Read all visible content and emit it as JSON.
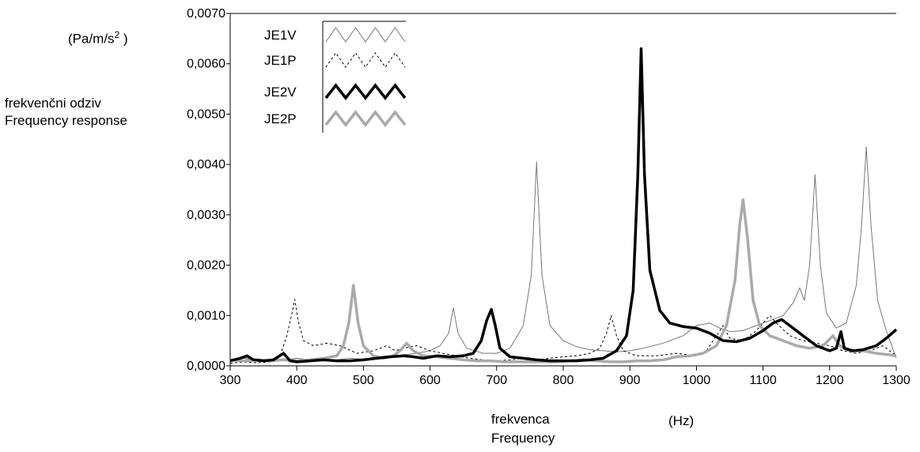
{
  "chart_data": {
    "type": "line",
    "unit_label": "(Pa/m/s",
    "unit_sup": "2",
    "unit_close": " )",
    "ylabel": [
      "frekvenčni odziv",
      "Frequency response"
    ],
    "xlabel": [
      "frekvenca",
      "Frequency"
    ],
    "xunit": "(Hz)",
    "xlim": [
      300,
      1300
    ],
    "ylim": [
      0,
      0.007
    ],
    "x_ticks": [
      300,
      400,
      500,
      600,
      700,
      800,
      900,
      1000,
      1100,
      1200,
      1300
    ],
    "x_tick_labels": [
      "300",
      "400",
      "500",
      "600",
      "700",
      "800",
      "900",
      "1000",
      "1100",
      "1200",
      "1300"
    ],
    "y_ticks": [
      0,
      0.001,
      0.002,
      0.003,
      0.004,
      0.005,
      0.006,
      0.007
    ],
    "y_tick_labels": [
      "0,0000",
      "0,0010",
      "0,0020",
      "0,0030",
      "0,0040",
      "0,0050",
      "0,0060",
      "0,0070"
    ],
    "legend_position": "top-left",
    "series": [
      {
        "name": "JE1V",
        "color": "#777777",
        "style": "thin",
        "points": [
          [
            300,
            0.0001
          ],
          [
            320,
            0.00015
          ],
          [
            340,
            0.00012
          ],
          [
            360,
            0.0001
          ],
          [
            380,
            0.00012
          ],
          [
            400,
            0.00015
          ],
          [
            420,
            0.00012
          ],
          [
            440,
            0.0001
          ],
          [
            460,
            0.00012
          ],
          [
            480,
            0.00015
          ],
          [
            500,
            0.00013
          ],
          [
            520,
            0.00018
          ],
          [
            540,
            0.0002
          ],
          [
            560,
            0.00022
          ],
          [
            580,
            0.00025
          ],
          [
            600,
            0.0003
          ],
          [
            615,
            0.0004
          ],
          [
            628,
            0.00065
          ],
          [
            635,
            0.00115
          ],
          [
            642,
            0.00065
          ],
          [
            655,
            0.00035
          ],
          [
            680,
            0.00025
          ],
          [
            700,
            0.00025
          ],
          [
            720,
            0.00035
          ],
          [
            740,
            0.0008
          ],
          [
            752,
            0.0018
          ],
          [
            760,
            0.00405
          ],
          [
            768,
            0.0018
          ],
          [
            780,
            0.0008
          ],
          [
            800,
            0.0005
          ],
          [
            820,
            0.00038
          ],
          [
            840,
            0.00032
          ],
          [
            860,
            0.0003
          ],
          [
            880,
            0.00028
          ],
          [
            900,
            0.0003
          ],
          [
            920,
            0.00035
          ],
          [
            950,
            0.00045
          ],
          [
            980,
            0.0006
          ],
          [
            1000,
            0.0008
          ],
          [
            1020,
            0.00085
          ],
          [
            1035,
            0.00075
          ],
          [
            1050,
            0.00068
          ],
          [
            1070,
            0.0007
          ],
          [
            1090,
            0.0008
          ],
          [
            1110,
            0.0009
          ],
          [
            1130,
            0.001
          ],
          [
            1145,
            0.00125
          ],
          [
            1155,
            0.00155
          ],
          [
            1162,
            0.0013
          ],
          [
            1170,
            0.002
          ],
          [
            1178,
            0.0038
          ],
          [
            1186,
            0.002
          ],
          [
            1195,
            0.00105
          ],
          [
            1210,
            0.00075
          ],
          [
            1225,
            0.00085
          ],
          [
            1240,
            0.0016
          ],
          [
            1248,
            0.0028
          ],
          [
            1255,
            0.00435
          ],
          [
            1262,
            0.0028
          ],
          [
            1272,
            0.0013
          ],
          [
            1285,
            0.0007
          ],
          [
            1300,
            0.00015
          ]
        ]
      },
      {
        "name": "JE1P",
        "color": "#000000",
        "style": "dashed",
        "points": [
          [
            300,
            5e-05
          ],
          [
            320,
            8e-05
          ],
          [
            340,
            6e-05
          ],
          [
            360,
            8e-05
          ],
          [
            375,
            0.0002
          ],
          [
            385,
            0.0006
          ],
          [
            392,
            0.001
          ],
          [
            397,
            0.00132
          ],
          [
            402,
            0.0009
          ],
          [
            410,
            0.0005
          ],
          [
            425,
            0.0004
          ],
          [
            445,
            0.00045
          ],
          [
            465,
            0.0004
          ],
          [
            490,
            0.00025
          ],
          [
            515,
            0.0003
          ],
          [
            535,
            0.0004
          ],
          [
            548,
            0.0003
          ],
          [
            560,
            0.00035
          ],
          [
            580,
            0.0004
          ],
          [
            600,
            0.0003
          ],
          [
            620,
            0.00025
          ],
          [
            640,
            0.0002
          ],
          [
            660,
            0.00015
          ],
          [
            680,
            0.00012
          ],
          [
            700,
            0.0001
          ],
          [
            720,
            0.00012
          ],
          [
            740,
            0.00015
          ],
          [
            760,
            0.00012
          ],
          [
            780,
            0.00015
          ],
          [
            800,
            0.00018
          ],
          [
            820,
            0.0002
          ],
          [
            840,
            0.00025
          ],
          [
            855,
            0.00035
          ],
          [
            865,
            0.00065
          ],
          [
            872,
            0.001
          ],
          [
            880,
            0.0006
          ],
          [
            890,
            0.0003
          ],
          [
            910,
            0.0002
          ],
          [
            940,
            0.0002
          ],
          [
            970,
            0.00025
          ],
          [
            1000,
            0.0002
          ],
          [
            1015,
            0.0003
          ],
          [
            1030,
            0.0006
          ],
          [
            1040,
            0.0008
          ],
          [
            1050,
            0.00055
          ],
          [
            1070,
            0.0005
          ],
          [
            1090,
            0.0007
          ],
          [
            1110,
            0.001
          ],
          [
            1120,
            0.00085
          ],
          [
            1140,
            0.0006
          ],
          [
            1160,
            0.0005
          ],
          [
            1180,
            0.00045
          ],
          [
            1200,
            0.0004
          ],
          [
            1220,
            0.0003
          ],
          [
            1240,
            0.00025
          ],
          [
            1260,
            0.0003
          ],
          [
            1280,
            0.0004
          ],
          [
            1300,
            0.0002
          ]
        ]
      },
      {
        "name": "JE2V",
        "color": "#000000",
        "style": "thick",
        "points": [
          [
            300,
            0.0001
          ],
          [
            315,
            0.00015
          ],
          [
            325,
            0.0002
          ],
          [
            335,
            0.00012
          ],
          [
            350,
            0.0001
          ],
          [
            365,
            0.00012
          ],
          [
            380,
            0.00025
          ],
          [
            390,
            0.0001
          ],
          [
            400,
            8e-05
          ],
          [
            420,
            0.0001
          ],
          [
            440,
            0.00012
          ],
          [
            460,
            0.0001
          ],
          [
            480,
            0.0001
          ],
          [
            500,
            0.00012
          ],
          [
            520,
            0.00015
          ],
          [
            540,
            0.00018
          ],
          [
            560,
            0.0002
          ],
          [
            575,
            0.00018
          ],
          [
            590,
            0.00015
          ],
          [
            610,
            0.0002
          ],
          [
            630,
            0.00018
          ],
          [
            650,
            0.0002
          ],
          [
            665,
            0.00025
          ],
          [
            677,
            0.0005
          ],
          [
            685,
            0.0009
          ],
          [
            692,
            0.00112
          ],
          [
            698,
            0.0008
          ],
          [
            705,
            0.00035
          ],
          [
            720,
            0.00018
          ],
          [
            740,
            0.00015
          ],
          [
            760,
            0.00012
          ],
          [
            780,
            0.0001
          ],
          [
            800,
            0.0001
          ],
          [
            820,
            0.0001
          ],
          [
            840,
            0.00012
          ],
          [
            860,
            0.00015
          ],
          [
            880,
            0.0003
          ],
          [
            895,
            0.0006
          ],
          [
            905,
            0.0015
          ],
          [
            912,
            0.0038
          ],
          [
            917,
            0.0063
          ],
          [
            922,
            0.0038
          ],
          [
            930,
            0.0019
          ],
          [
            945,
            0.0011
          ],
          [
            960,
            0.00085
          ],
          [
            980,
            0.00078
          ],
          [
            1000,
            0.00075
          ],
          [
            1020,
            0.00065
          ],
          [
            1040,
            0.0005
          ],
          [
            1060,
            0.00048
          ],
          [
            1080,
            0.00055
          ],
          [
            1100,
            0.0007
          ],
          [
            1115,
            0.00085
          ],
          [
            1128,
            0.00092
          ],
          [
            1140,
            0.0008
          ],
          [
            1160,
            0.0006
          ],
          [
            1180,
            0.0004
          ],
          [
            1200,
            0.0003
          ],
          [
            1210,
            0.00035
          ],
          [
            1217,
            0.00068
          ],
          [
            1222,
            0.00035
          ],
          [
            1235,
            0.0003
          ],
          [
            1250,
            0.00032
          ],
          [
            1270,
            0.0004
          ],
          [
            1285,
            0.00055
          ],
          [
            1300,
            0.00072
          ]
        ]
      },
      {
        "name": "JE2P",
        "color": "#aaaaaa",
        "style": "thickgrey",
        "points": [
          [
            300,
            0.00012
          ],
          [
            320,
            0.0001
          ],
          [
            340,
            0.00012
          ],
          [
            360,
            0.0001
          ],
          [
            380,
            0.00012
          ],
          [
            400,
            0.0001
          ],
          [
            420,
            0.00012
          ],
          [
            440,
            0.00015
          ],
          [
            460,
            0.0002
          ],
          [
            470,
            0.0004
          ],
          [
            478,
            0.00085
          ],
          [
            485,
            0.0016
          ],
          [
            492,
            0.00085
          ],
          [
            500,
            0.0004
          ],
          [
            515,
            0.0002
          ],
          [
            530,
            0.00015
          ],
          [
            545,
            0.0002
          ],
          [
            555,
            0.0003
          ],
          [
            565,
            0.00045
          ],
          [
            575,
            0.0003
          ],
          [
            590,
            0.0002
          ],
          [
            610,
            0.00018
          ],
          [
            630,
            0.00015
          ],
          [
            650,
            0.00012
          ],
          [
            670,
            0.0001
          ],
          [
            690,
            0.0001
          ],
          [
            710,
            8e-05
          ],
          [
            730,
            8e-05
          ],
          [
            750,
            8e-05
          ],
          [
            770,
            8e-05
          ],
          [
            790,
            8e-05
          ],
          [
            810,
            0.0001
          ],
          [
            830,
            0.00012
          ],
          [
            850,
            0.0001
          ],
          [
            870,
            8e-05
          ],
          [
            890,
            8e-05
          ],
          [
            910,
            0.0001
          ],
          [
            930,
            0.0001
          ],
          [
            950,
            0.00012
          ],
          [
            970,
            0.00018
          ],
          [
            990,
            0.0002
          ],
          [
            1010,
            0.00025
          ],
          [
            1030,
            0.0004
          ],
          [
            1045,
            0.0008
          ],
          [
            1058,
            0.0017
          ],
          [
            1065,
            0.0028
          ],
          [
            1070,
            0.0033
          ],
          [
            1077,
            0.0025
          ],
          [
            1085,
            0.0013
          ],
          [
            1095,
            0.0008
          ],
          [
            1110,
            0.0006
          ],
          [
            1130,
            0.0005
          ],
          [
            1150,
            0.0004
          ],
          [
            1170,
            0.00035
          ],
          [
            1190,
            0.0004
          ],
          [
            1205,
            0.0006
          ],
          [
            1215,
            0.0004
          ],
          [
            1230,
            0.0003
          ],
          [
            1250,
            0.0003
          ],
          [
            1270,
            0.00025
          ],
          [
            1290,
            0.00022
          ],
          [
            1300,
            0.0002
          ]
        ]
      }
    ]
  }
}
